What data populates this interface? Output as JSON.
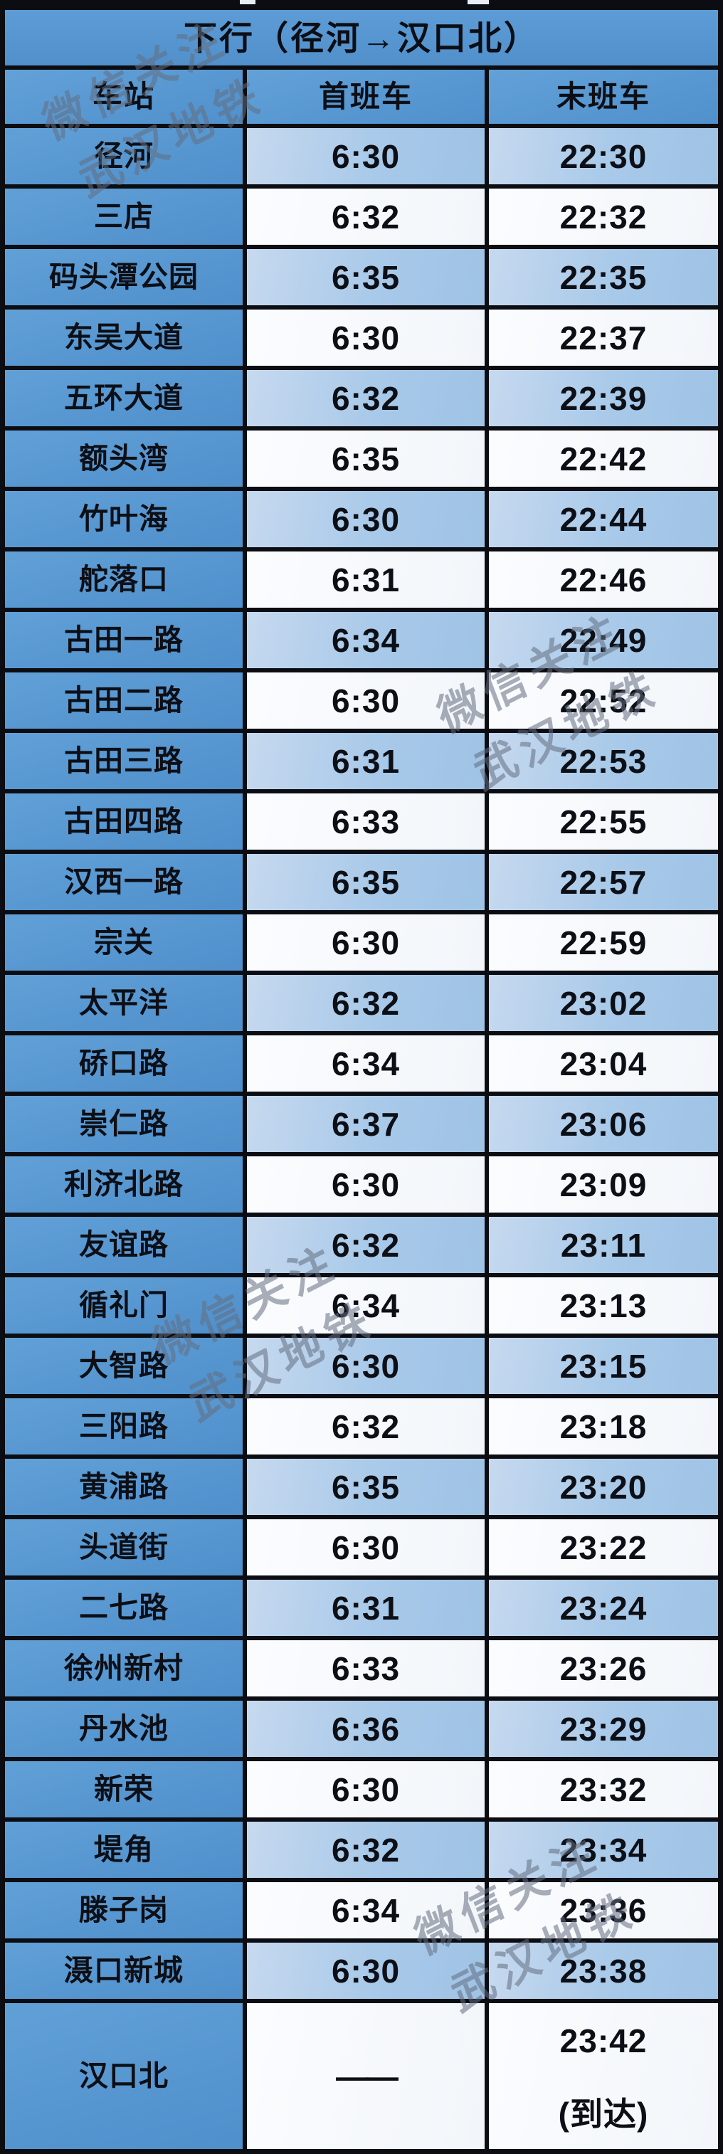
{
  "title": "下行（径河→汉口北）",
  "columns": [
    "车站",
    "首班车",
    "末班车"
  ],
  "rows": [
    {
      "station": "径河",
      "first": "6:30",
      "last": "22:30"
    },
    {
      "station": "三店",
      "first": "6:32",
      "last": "22:32"
    },
    {
      "station": "码头潭公园",
      "first": "6:35",
      "last": "22:35"
    },
    {
      "station": "东吴大道",
      "first": "6:30",
      "last": "22:37"
    },
    {
      "station": "五环大道",
      "first": "6:32",
      "last": "22:39"
    },
    {
      "station": "额头湾",
      "first": "6:35",
      "last": "22:42"
    },
    {
      "station": "竹叶海",
      "first": "6:30",
      "last": "22:44"
    },
    {
      "station": "舵落口",
      "first": "6:31",
      "last": "22:46"
    },
    {
      "station": "古田一路",
      "first": "6:34",
      "last": "22:49"
    },
    {
      "station": "古田二路",
      "first": "6:30",
      "last": "22:52"
    },
    {
      "station": "古田三路",
      "first": "6:31",
      "last": "22:53"
    },
    {
      "station": "古田四路",
      "first": "6:33",
      "last": "22:55"
    },
    {
      "station": "汉西一路",
      "first": "6:35",
      "last": "22:57"
    },
    {
      "station": "宗关",
      "first": "6:30",
      "last": "22:59"
    },
    {
      "station": "太平洋",
      "first": "6:32",
      "last": "23:02"
    },
    {
      "station": "硚口路",
      "first": "6:34",
      "last": "23:04"
    },
    {
      "station": "崇仁路",
      "first": "6:37",
      "last": "23:06"
    },
    {
      "station": "利济北路",
      "first": "6:30",
      "last": "23:09"
    },
    {
      "station": "友谊路",
      "first": "6:32",
      "last": "23:11"
    },
    {
      "station": "循礼门",
      "first": "6:34",
      "last": "23:13"
    },
    {
      "station": "大智路",
      "first": "6:30",
      "last": "23:15"
    },
    {
      "station": "三阳路",
      "first": "6:32",
      "last": "23:18"
    },
    {
      "station": "黄浦路",
      "first": "6:35",
      "last": "23:20"
    },
    {
      "station": "头道街",
      "first": "6:30",
      "last": "23:22"
    },
    {
      "station": "二七路",
      "first": "6:31",
      "last": "23:24"
    },
    {
      "station": "徐州新村",
      "first": "6:33",
      "last": "23:26"
    },
    {
      "station": "丹水池",
      "first": "6:36",
      "last": "23:29"
    },
    {
      "station": "新荣",
      "first": "6:30",
      "last": "23:32"
    },
    {
      "station": "堤角",
      "first": "6:32",
      "last": "23:34"
    },
    {
      "station": "滕子岗",
      "first": "6:34",
      "last": "23:36"
    },
    {
      "station": "滠口新城",
      "first": "6:30",
      "last": "23:38"
    }
  ],
  "terminal": {
    "station": "汉口北",
    "first": "——",
    "last_time": "23:42",
    "last_note": "(到达)"
  },
  "watermark": {
    "line1": "微信关注",
    "line2": "武汉地铁"
  },
  "colors": {
    "header_blue": "#5696d3",
    "row_light_blue": "#a8c9e9",
    "row_white": "#f6f9fc",
    "grid_border": "#0c0d12",
    "text": "#0d0f16",
    "watermark": "rgba(98,110,128,0.55)"
  }
}
